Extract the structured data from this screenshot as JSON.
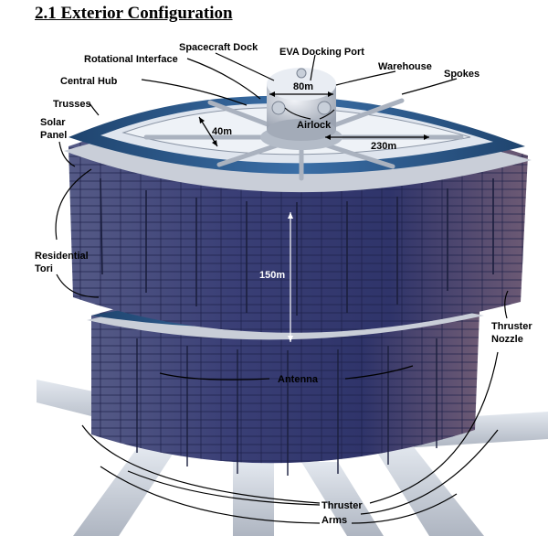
{
  "heading": "2.1 Exterior Configuration",
  "labels": {
    "spacecraft_dock": "Spacecraft Dock",
    "eva_docking_port": "EVA Docking Port",
    "rotational_interface": "Rotational Interface",
    "warehouse": "Warehouse",
    "spokes": "Spokes",
    "central_hub": "Central Hub",
    "trusses": "Trusses",
    "solar_panel_line1": "Solar",
    "solar_panel_line2": "Panel",
    "airlock": "Airlock",
    "residential_tori_line1": "Residential",
    "residential_tori_line2": "Tori",
    "thruster_nozzle_line1": "Thruster",
    "thruster_nozzle_line2": "Nozzle",
    "antenna": "Antenna",
    "thruster_arms_line1": "Thruster",
    "thruster_arms_line2": "Arms"
  },
  "dimensions": {
    "hub_diameter": "80m",
    "torus_width": "40m",
    "spoke_length": "230m",
    "height": "150m"
  },
  "colors": {
    "panel": "#3d4278",
    "panel_dark": "#262a55",
    "rim_blue": "#2b5a8e",
    "structure": "#c7ccd6",
    "background": "#ffffff"
  }
}
